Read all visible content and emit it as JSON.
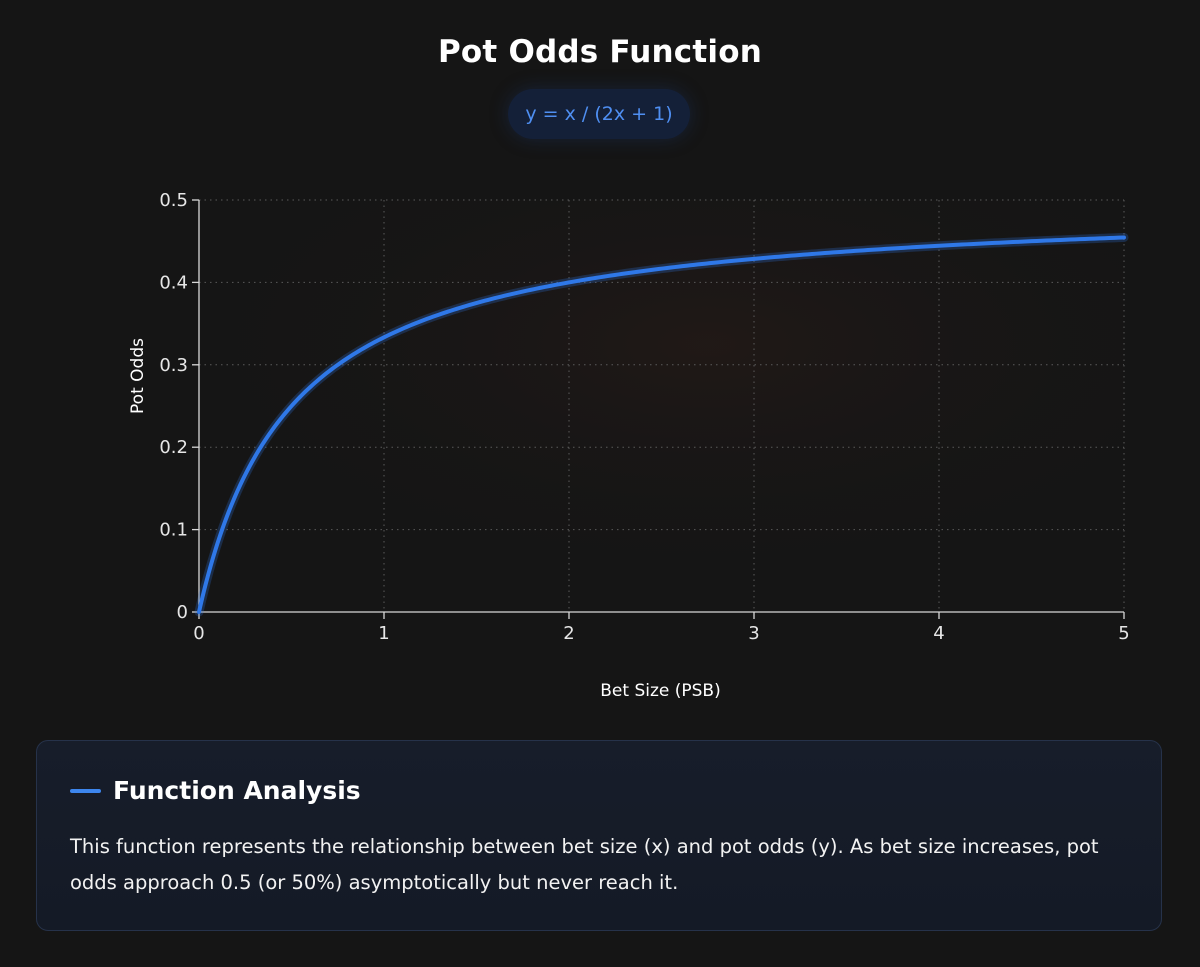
{
  "header": {
    "title": "Pot Odds Function",
    "formula": "y = x / (2x + 1)"
  },
  "chart_data": {
    "type": "line",
    "title": "Pot Odds Function",
    "xlabel": "Bet Size (PSB)",
    "ylabel": "Pot Odds",
    "xlim": [
      0,
      5
    ],
    "ylim": [
      0,
      0.5
    ],
    "xticks": [
      "0",
      "1",
      "2",
      "3",
      "4",
      "5"
    ],
    "yticks": [
      "0",
      "0.1",
      "0.2",
      "0.3",
      "0.4",
      "0.5"
    ],
    "grid": true,
    "series": [
      {
        "function": "y = x / (2x + 1)",
        "x": [
          0,
          0.1,
          0.2,
          0.3,
          0.4,
          0.5,
          0.75,
          1,
          1.5,
          2,
          2.5,
          3,
          3.5,
          4,
          4.5,
          5
        ],
        "values": [
          0,
          0.083,
          0.143,
          0.188,
          0.222,
          0.25,
          0.3,
          0.333,
          0.375,
          0.4,
          0.417,
          0.429,
          0.438,
          0.444,
          0.45,
          0.455
        ]
      }
    ],
    "line_color": "#2f78e8",
    "axis_color": "#d8d8d8",
    "grid_color": "#5a5a5a"
  },
  "analysis": {
    "title": "Function Analysis",
    "text": "This function represents the relationship between bet size (x) and pot odds (y). As bet size increases, pot odds approach 0.5 (or 50%) asymptotically but never reach it.",
    "accent_color": "#3d86ee"
  }
}
